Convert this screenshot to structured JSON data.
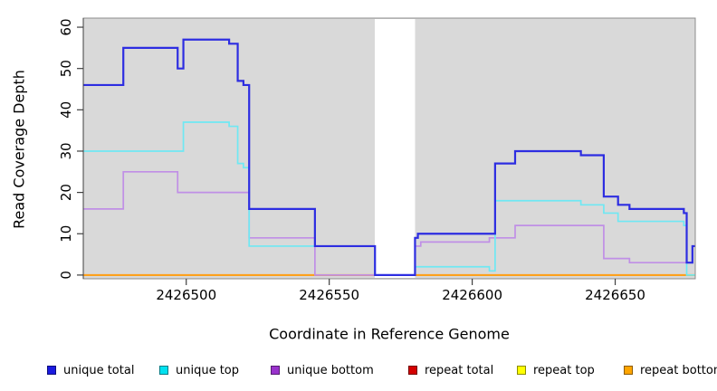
{
  "axis": {
    "ylabel": "Read Coverage Depth",
    "xlabel": "Coordinate in Reference Genome"
  },
  "legend": {
    "items": [
      {
        "label": "unique total",
        "color": "#1A1AE0"
      },
      {
        "label": "unique top",
        "color": "#00E1F0"
      },
      {
        "label": "unique bottom",
        "color": "#9932CC"
      },
      {
        "label": "repeat total",
        "color": "#D40000"
      },
      {
        "label": "repeat top",
        "color": "#FFFF00"
      },
      {
        "label": "repeat bottom",
        "color": "#FFA500"
      }
    ]
  },
  "chart_data": {
    "type": "line",
    "subtype": "step-coverage",
    "title": "",
    "xlabel": "Coordinate in Reference Genome",
    "ylabel": "Read Coverage Depth",
    "xlim": [
      2426464,
      2426678
    ],
    "ylim": [
      -0.9,
      62.2
    ],
    "xticks": [
      "2426500",
      "2426550",
      "2426600",
      "2426650"
    ],
    "xtick_values": [
      2426500,
      2426550,
      2426600,
      2426650
    ],
    "yticks": [
      "0",
      "10",
      "20",
      "30",
      "40",
      "50",
      "60"
    ],
    "ytick_values": [
      0,
      10,
      20,
      30,
      40,
      50,
      60
    ],
    "plot_bg": "#d9d9d9",
    "grid": false,
    "legend_position": "bottom",
    "gap_region": {
      "from": 2426566,
      "to": 2426580
    },
    "series": [
      {
        "name": "repeat total",
        "color": "#D40000",
        "width": 1.8,
        "points": [
          [
            2426464,
            0
          ]
        ]
      },
      {
        "name": "repeat top",
        "color": "#FFFF00",
        "width": 1.8,
        "points": [
          [
            2426464,
            0
          ]
        ]
      },
      {
        "name": "repeat bottom",
        "color": "#FF9F1A",
        "width": 2,
        "points": [
          [
            2426464,
            0
          ]
        ]
      },
      {
        "name": "unique bottom",
        "color": "#C08FE6",
        "width": 1.7,
        "points": [
          [
            2426464,
            16
          ],
          [
            2426478,
            25
          ],
          [
            2426497,
            20
          ],
          [
            2426522,
            9
          ],
          [
            2426545,
            0
          ],
          [
            2426580,
            7
          ],
          [
            2426582,
            8
          ],
          [
            2426606,
            9
          ],
          [
            2426615,
            12
          ],
          [
            2426646,
            4
          ],
          [
            2426655,
            3
          ],
          [
            2426677,
            7
          ]
        ]
      },
      {
        "name": "unique top",
        "color": "#6FE8F3",
        "width": 1.7,
        "points": [
          [
            2426464,
            30
          ],
          [
            2426499,
            37
          ],
          [
            2426515,
            36
          ],
          [
            2426518,
            27
          ],
          [
            2426520,
            26
          ],
          [
            2426522,
            7
          ],
          [
            2426566,
            0
          ],
          [
            2426580,
            2
          ],
          [
            2426606,
            1
          ],
          [
            2426608,
            18
          ],
          [
            2426638,
            17
          ],
          [
            2426646,
            15
          ],
          [
            2426651,
            13
          ],
          [
            2426674,
            12
          ],
          [
            2426675,
            0
          ]
        ]
      },
      {
        "name": "unique total",
        "color": "#2D2DE1",
        "width": 2.2,
        "points": [
          [
            2426464,
            46
          ],
          [
            2426478,
            55
          ],
          [
            2426497,
            50
          ],
          [
            2426499,
            57
          ],
          [
            2426515,
            56
          ],
          [
            2426518,
            47
          ],
          [
            2426520,
            46
          ],
          [
            2426522,
            16
          ],
          [
            2426545,
            7
          ],
          [
            2426566,
            0
          ],
          [
            2426580,
            9
          ],
          [
            2426581,
            10
          ],
          [
            2426608,
            27
          ],
          [
            2426615,
            30
          ],
          [
            2426638,
            29
          ],
          [
            2426646,
            19
          ],
          [
            2426651,
            17
          ],
          [
            2426655,
            16
          ],
          [
            2426674,
            15
          ],
          [
            2426675,
            3
          ],
          [
            2426677,
            7
          ]
        ]
      }
    ]
  }
}
